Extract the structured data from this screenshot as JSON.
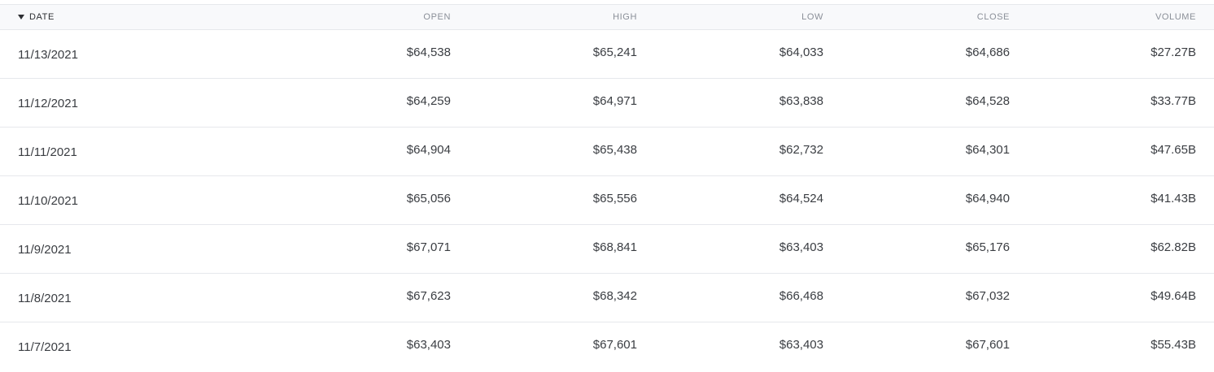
{
  "header": {
    "date": "DATE",
    "open": "OPEN",
    "high": "HIGH",
    "low": "LOW",
    "close": "CLOSE",
    "volume": "VOLUME",
    "sort_icon": "caret-down-icon"
  },
  "rows": [
    {
      "date": "11/13/2021",
      "open": "$64,538",
      "high": "$65,241",
      "low": "$64,033",
      "close": "$64,686",
      "volume": "$27.27B"
    },
    {
      "date": "11/12/2021",
      "open": "$64,259",
      "high": "$64,971",
      "low": "$63,838",
      "close": "$64,528",
      "volume": "$33.77B"
    },
    {
      "date": "11/11/2021",
      "open": "$64,904",
      "high": "$65,438",
      "low": "$62,732",
      "close": "$64,301",
      "volume": "$47.65B"
    },
    {
      "date": "11/10/2021",
      "open": "$65,056",
      "high": "$65,556",
      "low": "$64,524",
      "close": "$64,940",
      "volume": "$41.43B"
    },
    {
      "date": "11/9/2021",
      "open": "$67,071",
      "high": "$68,841",
      "low": "$63,403",
      "close": "$65,176",
      "volume": "$62.82B"
    },
    {
      "date": "11/8/2021",
      "open": "$67,623",
      "high": "$68,342",
      "low": "$66,468",
      "close": "$67,032",
      "volume": "$49.64B"
    },
    {
      "date": "11/7/2021",
      "open": "$63,403",
      "high": "$67,601",
      "low": "$63,403",
      "close": "$67,601",
      "volume": "$55.43B"
    }
  ]
}
